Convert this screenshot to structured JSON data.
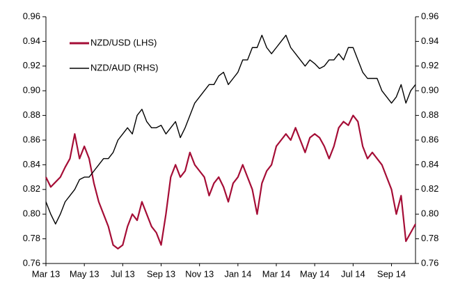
{
  "chart_data": {
    "type": "line",
    "categories": [
      "Mar 13",
      null,
      null,
      null,
      null,
      null,
      null,
      null,
      "May 13",
      null,
      null,
      null,
      null,
      null,
      null,
      null,
      "Jul 13",
      null,
      null,
      null,
      null,
      null,
      null,
      null,
      "Sep 13",
      null,
      null,
      null,
      null,
      null,
      null,
      null,
      "Nov 13",
      null,
      null,
      null,
      null,
      null,
      null,
      null,
      "Jan 14",
      null,
      null,
      null,
      null,
      null,
      null,
      null,
      "Mar 14",
      null,
      null,
      null,
      null,
      null,
      null,
      null,
      "May 14",
      null,
      null,
      null,
      null,
      null,
      null,
      null,
      "Jul 14",
      null,
      null,
      null,
      null,
      null,
      null,
      null,
      "Sep 14",
      null,
      null,
      null,
      null,
      null
    ],
    "series": [
      {
        "name": "NZD/USD (LHS)",
        "color": "#a50d36",
        "axis": "y",
        "values": [
          0.83,
          0.822,
          0.826,
          0.83,
          0.838,
          0.845,
          0.865,
          0.845,
          0.855,
          0.845,
          0.825,
          0.81,
          0.8,
          0.79,
          0.775,
          0.772,
          0.775,
          0.79,
          0.8,
          0.795,
          0.81,
          0.8,
          0.79,
          0.785,
          0.775,
          0.8,
          0.83,
          0.84,
          0.83,
          0.835,
          0.85,
          0.84,
          0.835,
          0.83,
          0.815,
          0.825,
          0.83,
          0.822,
          0.81,
          0.825,
          0.83,
          0.84,
          0.83,
          0.82,
          0.8,
          0.825,
          0.835,
          0.84,
          0.855,
          0.86,
          0.865,
          0.86,
          0.87,
          0.86,
          0.85,
          0.862,
          0.865,
          0.862,
          0.855,
          0.845,
          0.855,
          0.87,
          0.875,
          0.872,
          0.88,
          0.875,
          0.855,
          0.845,
          0.85,
          0.845,
          0.84,
          0.83,
          0.82,
          0.8,
          0.815,
          0.778,
          0.785,
          0.792
        ]
      },
      {
        "name": "NZD/AUD (RHS)",
        "color": "#000000",
        "axis": "y2",
        "values": [
          0.81,
          0.8,
          0.792,
          0.8,
          0.81,
          0.815,
          0.82,
          0.828,
          0.83,
          0.83,
          0.835,
          0.84,
          0.845,
          0.845,
          0.85,
          0.86,
          0.865,
          0.87,
          0.865,
          0.88,
          0.885,
          0.875,
          0.87,
          0.87,
          0.872,
          0.865,
          0.87,
          0.875,
          0.862,
          0.87,
          0.88,
          0.89,
          0.895,
          0.9,
          0.905,
          0.905,
          0.912,
          0.915,
          0.905,
          0.91,
          0.915,
          0.925,
          0.925,
          0.935,
          0.935,
          0.945,
          0.935,
          0.93,
          0.935,
          0.94,
          0.945,
          0.935,
          0.93,
          0.925,
          0.92,
          0.925,
          0.922,
          0.918,
          0.92,
          0.925,
          0.925,
          0.93,
          0.925,
          0.935,
          0.935,
          0.925,
          0.915,
          0.91,
          0.91,
          0.91,
          0.9,
          0.895,
          0.89,
          0.895,
          0.905,
          0.89,
          0.9,
          0.905
        ]
      }
    ],
    "ylim": [
      0.76,
      0.96
    ],
    "yticks": [
      0.76,
      0.78,
      {
        "value": 0.8,
        "label": "0.80"
      },
      0.82,
      0.84,
      0.86,
      0.88,
      {
        "value": 0.9,
        "label": "0.90"
      },
      0.92,
      0.94,
      0.96
    ],
    "y2lim": [
      0.76,
      0.96
    ],
    "y2ticks": [
      0.76,
      0.78,
      {
        "value": 0.8,
        "label": "0.80"
      },
      0.82,
      0.84,
      0.86,
      0.88,
      {
        "value": 0.9,
        "label": "0.90"
      },
      0.92,
      0.94,
      0.96
    ],
    "legend": "upper left",
    "grid": false
  }
}
